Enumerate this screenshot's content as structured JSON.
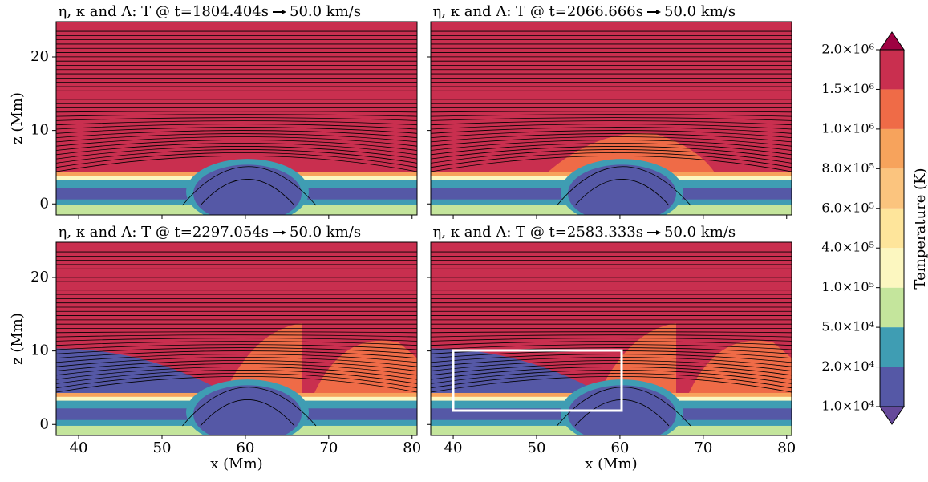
{
  "chart_data": [
    {
      "type": "contour",
      "title": "η, κ and Λ: T @ t=1804.404s",
      "quiver_key": "50.0 km/s",
      "ylabel": "z (Mm)",
      "xlim": [
        37.3,
        80.6
      ],
      "ylim": [
        -1.5,
        24.8
      ],
      "xticks": [
        40,
        50,
        60,
        70,
        80
      ],
      "yticks": [
        0,
        10,
        20
      ]
    },
    {
      "type": "contour",
      "title": "η, κ and Λ: T @ t=2066.666s",
      "quiver_key": "50.0 km/s",
      "xlim": [
        37.3,
        80.6
      ],
      "ylim": [
        -1.5,
        24.8
      ],
      "xticks": [
        40,
        50,
        60,
        70,
        80
      ],
      "yticks": [
        0,
        10,
        20
      ]
    },
    {
      "type": "contour",
      "title": "η, κ and Λ: T @ t=2297.054s",
      "quiver_key": "50.0 km/s",
      "xlabel": "x (Mm)",
      "ylabel": "z (Mm)",
      "xlim": [
        37.3,
        80.6
      ],
      "ylim": [
        -1.5,
        24.8
      ],
      "xticks": [
        40,
        50,
        60,
        70,
        80
      ],
      "yticks": [
        0,
        10,
        20
      ]
    },
    {
      "type": "contour",
      "title": "η, κ and Λ: T @ t=2583.333s",
      "quiver_key": "50.0 km/s",
      "xlabel": "x (Mm)",
      "xlim": [
        37.3,
        80.6
      ],
      "ylim": [
        -1.5,
        24.8
      ],
      "xticks": [
        40,
        50,
        60,
        70,
        80
      ],
      "yticks": [
        0,
        10,
        20
      ]
    }
  ],
  "colorbar": {
    "label": "Temperature (K)",
    "ticks": [
      {
        "value": 10000,
        "label": "1.0×10⁴"
      },
      {
        "value": 20000,
        "label": "2.0×10⁴"
      },
      {
        "value": 50000,
        "label": "5.0×10⁴"
      },
      {
        "value": 100000,
        "label": "1.0×10⁵"
      },
      {
        "value": 400000,
        "label": "4.0×10⁵"
      },
      {
        "value": 600000,
        "label": "6.0×10⁵"
      },
      {
        "value": 800000,
        "label": "8.0×10⁵"
      },
      {
        "value": 1000000,
        "label": "1.0×10⁶"
      },
      {
        "value": 1500000,
        "label": "1.5×10⁶"
      },
      {
        "value": 2000000,
        "label": "2.0×10⁶"
      }
    ],
    "colors": [
      "#5558a6",
      "#3f9db3",
      "#c4e59c",
      "#fcf7c0",
      "#fee59b",
      "#fbc47e",
      "#f7a35c",
      "#ef6b47",
      "#c92f4f"
    ],
    "extend_colors": [
      "#66499a",
      "#9e0142"
    ]
  }
}
